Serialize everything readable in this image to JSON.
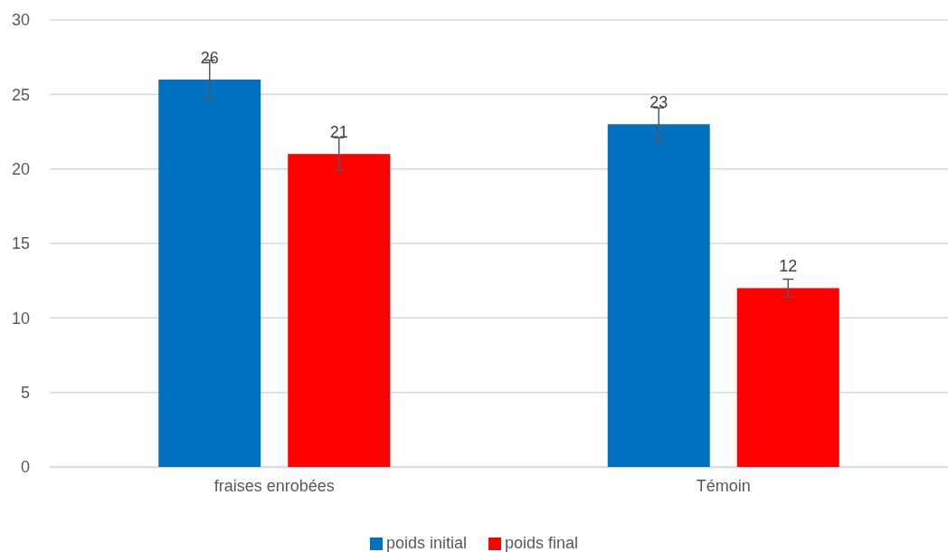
{
  "chart_data": {
    "type": "bar",
    "categories": [
      "fraises enrobées",
      "Témoin"
    ],
    "series": [
      {
        "name": "poids initial",
        "color": "#0070c0",
        "values": [
          26,
          23
        ],
        "errors": [
          1.3,
          1.1
        ]
      },
      {
        "name": "poids final",
        "color": "#ff0000",
        "values": [
          21,
          12
        ],
        "errors": [
          1.1,
          0.6
        ]
      }
    ],
    "ylim": [
      0,
      30
    ],
    "yticks": [
      0,
      5,
      10,
      15,
      20,
      25,
      30
    ],
    "grid": "y",
    "legend": "bottom",
    "data_labels": true
  }
}
